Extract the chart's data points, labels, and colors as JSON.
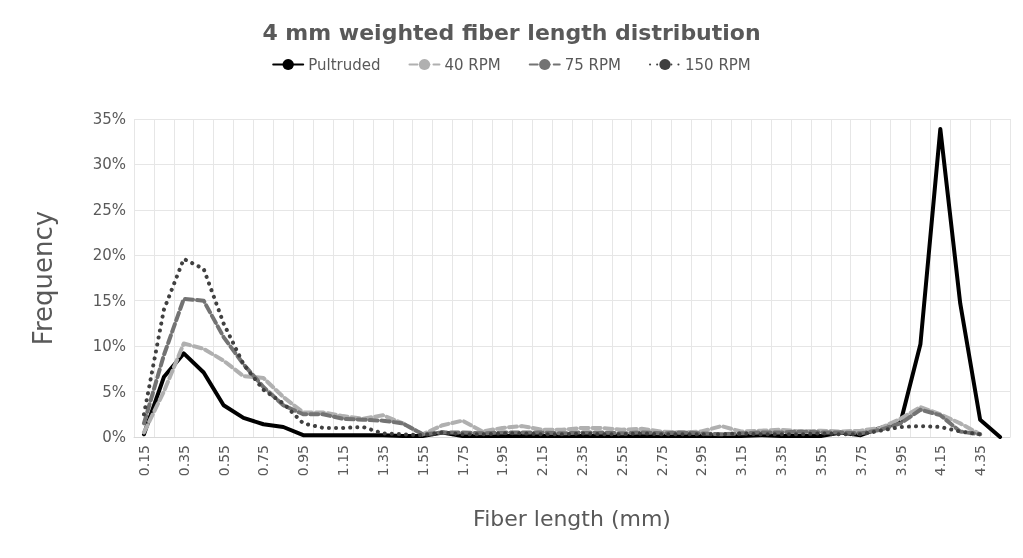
{
  "chart_data": {
    "type": "line",
    "title": "4 mm weighted fiber length distribution",
    "xlabel": "Fiber length (mm)",
    "ylabel": "Frequency",
    "categories": [
      "0.15",
      null,
      "0.35",
      null,
      "0.55",
      null,
      "0.75",
      null,
      "0.95",
      null,
      "1.15",
      null,
      "1.35",
      null,
      "1.55",
      null,
      "1.75",
      null,
      "1.95",
      null,
      "2.15",
      null,
      "2.35",
      null,
      "2.55",
      null,
      "2.75",
      null,
      "2.95",
      null,
      "3.15",
      null,
      "3.35",
      null,
      "3.55",
      null,
      "3.75",
      null,
      "3.95",
      null,
      "4.15",
      null,
      "4.35",
      null
    ],
    "series": [
      {
        "name": "Pultruded",
        "color": "#000000",
        "line_style": "solid",
        "values": [
          0.3,
          6.6,
          9.2,
          7.1,
          3.5,
          2.1,
          1.4,
          1.1,
          0.2,
          0.2,
          0.2,
          0.2,
          0.2,
          0.1,
          0.1,
          0.5,
          0.1,
          0.1,
          0.1,
          0.1,
          0.1,
          0.1,
          0.1,
          0.1,
          0.1,
          0.1,
          0.1,
          0.1,
          0.1,
          0.1,
          0.1,
          0.2,
          0.1,
          0.1,
          0.1,
          0.5,
          0.2,
          1.0,
          1.6,
          10.2,
          33.9,
          14.7,
          1.9,
          0
        ]
      },
      {
        "name": "40 RPM",
        "color": "#b0b0b0",
        "line_style": "dashed",
        "values": [
          0.5,
          5,
          10.3,
          9.7,
          8.4,
          6.7,
          6.5,
          4.4,
          2.7,
          2.7,
          2.3,
          2.0,
          2.4,
          1.5,
          0.3,
          1.3,
          1.8,
          0.6,
          1.0,
          1.2,
          0.8,
          0.8,
          1.0,
          1.0,
          0.8,
          0.9,
          0.6,
          0.5,
          0.6,
          1.2,
          0.6,
          0.7,
          0.8,
          0.6,
          0.7,
          0.6,
          0.7,
          1.0,
          2.0,
          3.3,
          2.5,
          1.5,
          0.3,
          null
        ]
      },
      {
        "name": "75 RPM",
        "color": "#737373",
        "line_style": "dashed",
        "values": [
          1.5,
          9,
          15.2,
          15,
          11,
          8,
          5.5,
          3.5,
          2.5,
          2.5,
          2.0,
          1.9,
          1.8,
          1.5,
          0.3,
          0.5,
          0.5,
          0.4,
          0.5,
          0.5,
          0.5,
          0.4,
          0.5,
          0.5,
          0.4,
          0.5,
          0.4,
          0.5,
          0.4,
          0.3,
          0.4,
          0.5,
          0.5,
          0.6,
          0.5,
          0.5,
          0.4,
          0.8,
          1.5,
          3.0,
          2.4,
          0.6,
          0.3,
          null
        ]
      },
      {
        "name": "150 RPM",
        "color": "#404040",
        "line_style": "dotted",
        "values": [
          2.5,
          14,
          19.6,
          18.5,
          12.5,
          8,
          5.2,
          3.7,
          1.5,
          1.0,
          1.0,
          1.1,
          0.4,
          0.3,
          0.2,
          0.5,
          0.3,
          0.3,
          0.4,
          0.4,
          0.3,
          0.3,
          0.4,
          0.3,
          0.3,
          0.4,
          0.3,
          0.3,
          0.3,
          0.3,
          0.4,
          0.3,
          0.3,
          0.3,
          0.4,
          0.3,
          0.3,
          0.7,
          1.1,
          1.2,
          1.1,
          0.6,
          0.3,
          null
        ]
      }
    ],
    "ylim": [
      0,
      35
    ],
    "yticks": [
      {
        "value": 0,
        "label": "0%"
      },
      {
        "value": 5,
        "label": "5%"
      },
      {
        "value": 10,
        "label": "10%"
      },
      {
        "value": 15,
        "label": "15%"
      },
      {
        "value": 20,
        "label": "20%"
      },
      {
        "value": 25,
        "label": "25%"
      },
      {
        "value": 30,
        "label": "30%"
      },
      {
        "value": 35,
        "label": "35%"
      }
    ],
    "grid": true,
    "legend": "top",
    "marker": "none"
  }
}
